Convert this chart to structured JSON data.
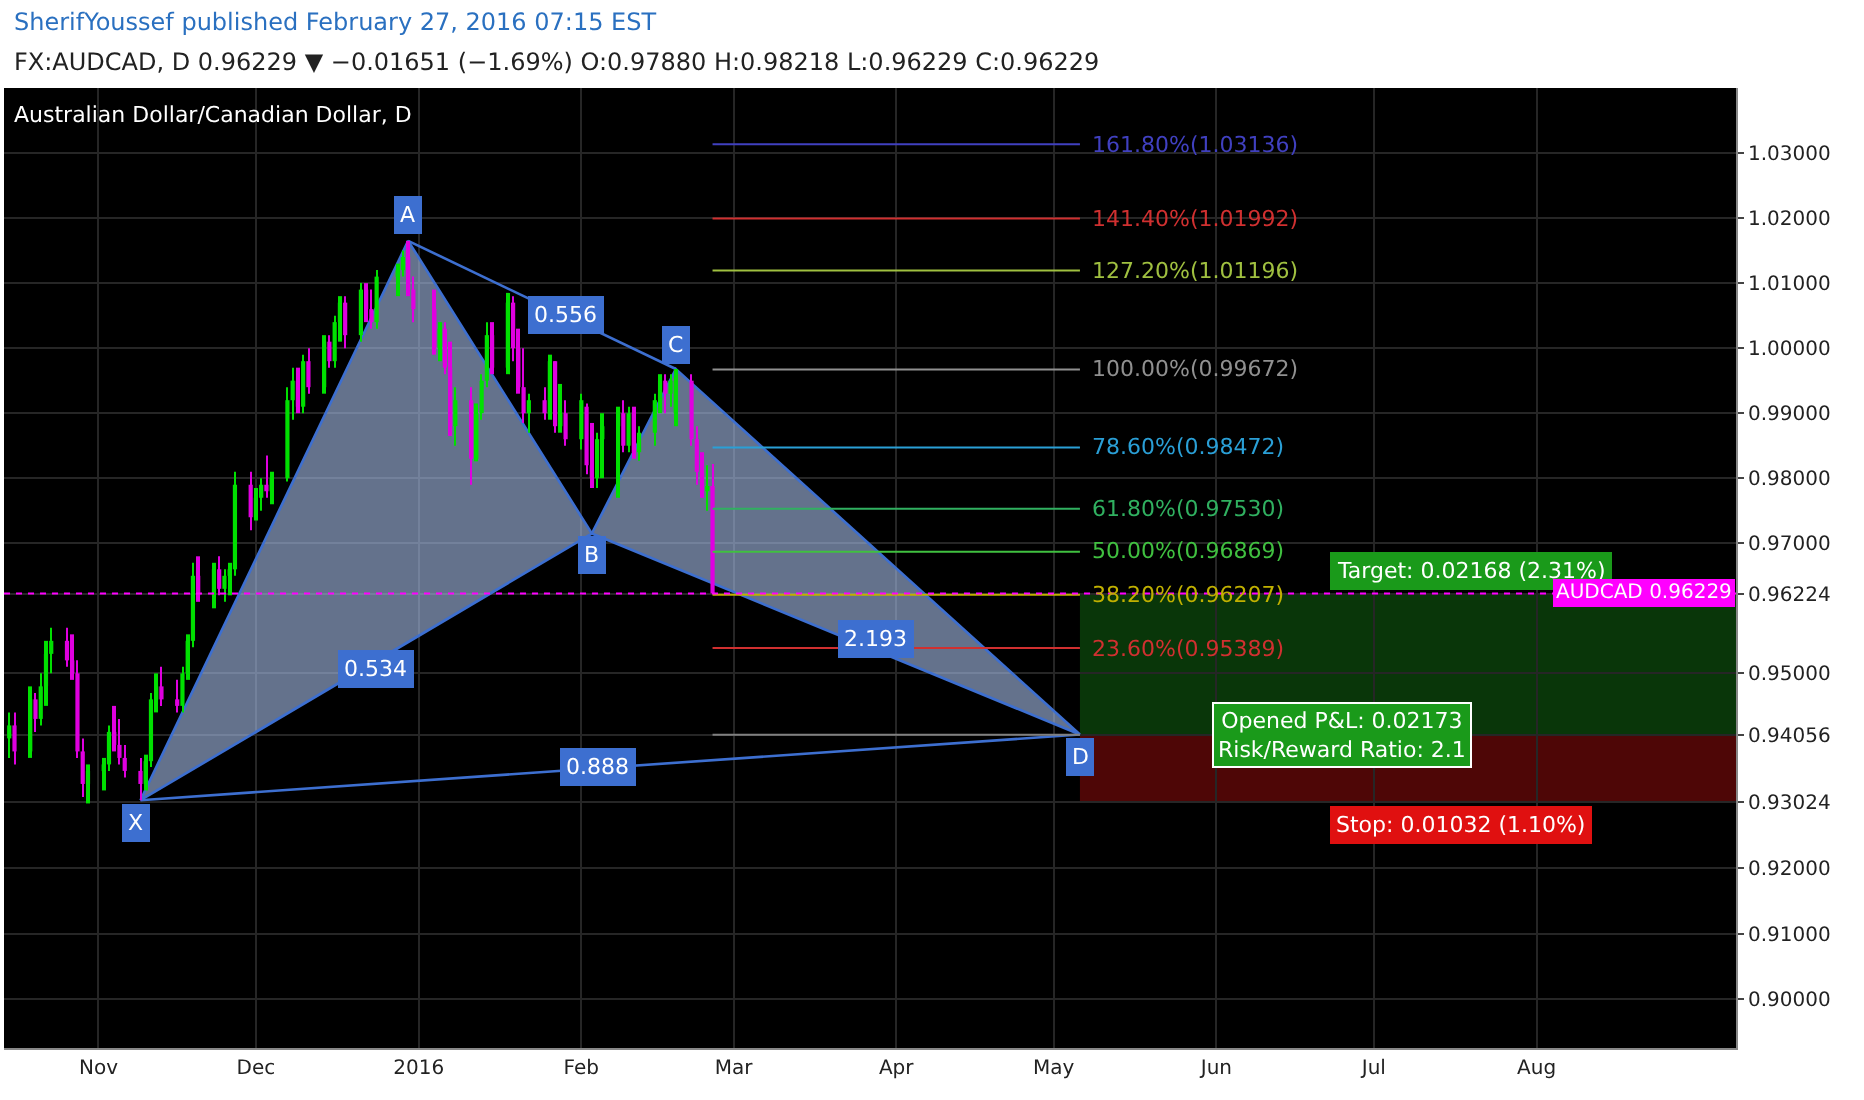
{
  "chart_data": {
    "type": "candlestick",
    "title": "SherifYoussef published February 27, 2016 07:15 EST",
    "subtitle": "FX:AUDCAD, D 0.96229 ▼ −0.01651 (−1.69%) O:0.97880 H:0.98218 L:0.96229 C:0.96229",
    "x": [
      "2015-10-15",
      "2015-10-16",
      "2015-10-19",
      "2015-10-20",
      "2015-10-21",
      "2015-10-22",
      "2015-10-23",
      "2015-10-26",
      "2015-10-27",
      "2015-10-28",
      "2015-10-29",
      "2015-10-30",
      "2015-11-02",
      "2015-11-03",
      "2015-11-04",
      "2015-11-05",
      "2015-11-06",
      "2015-11-09",
      "2015-11-10",
      "2015-11-11",
      "2015-11-12",
      "2015-11-13",
      "2015-11-16",
      "2015-11-17",
      "2015-11-18",
      "2015-11-19",
      "2015-11-20",
      "2015-11-23",
      "2015-11-24",
      "2015-11-25",
      "2015-11-26",
      "2015-11-27",
      "2015-11-30",
      "2015-12-01",
      "2015-12-02",
      "2015-12-03",
      "2015-12-04",
      "2015-12-07",
      "2015-12-08",
      "2015-12-09",
      "2015-12-10",
      "2015-12-11",
      "2015-12-14",
      "2015-12-15",
      "2015-12-16",
      "2015-12-17",
      "2015-12-18",
      "2015-12-21",
      "2015-12-22",
      "2015-12-23",
      "2015-12-24",
      "2015-12-28",
      "2015-12-29",
      "2015-12-30",
      "2015-12-31",
      "2016-01-04",
      "2016-01-05",
      "2016-01-06",
      "2016-01-07",
      "2016-01-08",
      "2016-01-11",
      "2016-01-12",
      "2016-01-13",
      "2016-01-14",
      "2016-01-15",
      "2016-01-18",
      "2016-01-19",
      "2016-01-20",
      "2016-01-21",
      "2016-01-22",
      "2016-01-25",
      "2016-01-26",
      "2016-01-27",
      "2016-01-28",
      "2016-01-29",
      "2016-02-01",
      "2016-02-02",
      "2016-02-03",
      "2016-02-04",
      "2016-02-05",
      "2016-02-08",
      "2016-02-09",
      "2016-02-10",
      "2016-02-11",
      "2016-02-12",
      "2016-02-15",
      "2016-02-16",
      "2016-02-17",
      "2016-02-18",
      "2016-02-19",
      "2016-02-22",
      "2016-02-23",
      "2016-02-24",
      "2016-02-25",
      "2016-02-26"
    ],
    "ohlc": [
      [
        0.94,
        0.944,
        0.937,
        0.942
      ],
      [
        0.942,
        0.944,
        0.936,
        0.938
      ],
      [
        0.938,
        0.948,
        0.937,
        0.946
      ],
      [
        0.946,
        0.947,
        0.941,
        0.943
      ],
      [
        0.943,
        0.95,
        0.942,
        0.948
      ],
      [
        0.948,
        0.955,
        0.945,
        0.953
      ],
      [
        0.953,
        0.957,
        0.95,
        0.955
      ],
      [
        0.955,
        0.957,
        0.951,
        0.952
      ],
      [
        0.952,
        0.956,
        0.949,
        0.95
      ],
      [
        0.95,
        0.952,
        0.937,
        0.938
      ],
      [
        0.938,
        0.94,
        0.931,
        0.933
      ],
      [
        0.933,
        0.936,
        0.93,
        0.935
      ],
      [
        0.935,
        0.937,
        0.932,
        0.936
      ],
      [
        0.936,
        0.942,
        0.935,
        0.941
      ],
      [
        0.941,
        0.945,
        0.938,
        0.939
      ],
      [
        0.939,
        0.943,
        0.936,
        0.937
      ],
      [
        0.937,
        0.939,
        0.934,
        0.935
      ],
      [
        0.935,
        0.937,
        0.9305,
        0.933
      ],
      [
        0.933,
        0.9375,
        0.932,
        0.9365
      ],
      [
        0.9365,
        0.947,
        0.9356,
        0.946
      ],
      [
        0.946,
        0.95,
        0.944,
        0.948
      ],
      [
        0.948,
        0.951,
        0.945,
        0.946
      ],
      [
        0.946,
        0.949,
        0.944,
        0.945
      ],
      [
        0.945,
        0.951,
        0.944,
        0.95
      ],
      [
        0.95,
        0.956,
        0.949,
        0.955
      ],
      [
        0.955,
        0.967,
        0.954,
        0.965
      ],
      [
        0.965,
        0.968,
        0.961,
        0.962
      ],
      [
        0.962,
        0.967,
        0.96,
        0.966
      ],
      [
        0.966,
        0.968,
        0.962,
        0.963
      ],
      [
        0.963,
        0.966,
        0.961,
        0.965
      ],
      [
        0.965,
        0.967,
        0.962,
        0.966
      ],
      [
        0.966,
        0.981,
        0.965,
        0.979
      ],
      [
        0.979,
        0.981,
        0.972,
        0.974
      ],
      [
        0.974,
        0.9785,
        0.9735,
        0.977
      ],
      [
        0.977,
        0.98,
        0.975,
        0.979
      ],
      [
        0.979,
        0.9835,
        0.977,
        0.978
      ],
      [
        0.978,
        0.981,
        0.976,
        0.98
      ],
      [
        0.98,
        0.994,
        0.9795,
        0.992
      ],
      [
        0.992,
        0.997,
        0.989,
        0.995
      ],
      [
        0.995,
        0.997,
        0.99,
        0.991
      ],
      [
        0.991,
        0.999,
        0.99,
        0.998
      ],
      [
        0.998,
        1.0,
        0.993,
        0.994
      ],
      [
        0.994,
        1.002,
        0.993,
        1.001
      ],
      [
        1.001,
        1.002,
        0.997,
        0.998
      ],
      [
        0.998,
        1.005,
        0.997,
        1.004
      ],
      [
        1.004,
        1.008,
        1.001,
        1.007
      ],
      [
        1.007,
        1.008,
        1.0,
        1.002
      ],
      [
        1.002,
        1.01,
        1.001,
        1.009
      ],
      [
        1.009,
        1.01,
        1.004,
        1.006
      ],
      [
        1.006,
        1.009,
        1.003,
        1.004
      ],
      [
        1.004,
        1.012,
        1.003,
        1.011
      ],
      [
        1.011,
        1.013,
        1.008,
        1.012
      ],
      [
        1.012,
        1.015,
        1.011,
        1.014
      ],
      [
        1.014,
        1.0165,
        1.008,
        1.009
      ],
      [
        1.009,
        1.011,
        1.004,
        1.006
      ],
      [
        1.006,
        1.009,
        0.999,
        1.0
      ],
      [
        1.0,
        1.004,
        0.998,
        1.003
      ],
      [
        1.003,
        1.004,
        0.996,
        0.997
      ],
      [
        0.997,
        1.001,
        0.9865,
        0.988
      ],
      [
        0.988,
        0.994,
        0.985,
        0.992
      ],
      [
        0.992,
        0.994,
        0.979,
        0.983
      ],
      [
        0.983,
        0.9915,
        0.9826,
        0.99
      ],
      [
        0.99,
        0.996,
        0.989,
        0.995
      ],
      [
        0.995,
        1.004,
        0.994,
        1.002
      ],
      [
        1.002,
        1.004,
        0.996,
        0.997
      ],
      [
        0.997,
        1.0085,
        0.996,
        1.007
      ],
      [
        1.007,
        1.008,
        0.998,
        1.0
      ],
      [
        1.0,
        1.003,
        0.993,
        0.994
      ],
      [
        0.994,
        1.0,
        0.9885,
        0.99
      ],
      [
        0.99,
        0.993,
        0.987,
        0.992
      ],
      [
        0.992,
        0.994,
        0.989,
        0.99
      ],
      [
        0.99,
        0.999,
        0.989,
        0.998
      ],
      [
        0.998,
        0.998,
        0.987,
        0.988
      ],
      [
        0.988,
        0.9945,
        0.987,
        0.99
      ],
      [
        0.99,
        0.992,
        0.985,
        0.986
      ],
      [
        0.986,
        0.993,
        0.9844,
        0.992
      ],
      [
        0.991,
        0.9915,
        0.9806,
        0.982
      ],
      [
        0.982,
        0.9885,
        0.9785,
        0.98
      ],
      [
        0.98,
        0.987,
        0.9785,
        0.986
      ],
      [
        0.986,
        0.99,
        0.98,
        0.988
      ],
      [
        0.988,
        0.991,
        0.977,
        0.99
      ],
      [
        0.99,
        0.992,
        0.984,
        0.985
      ],
      [
        0.985,
        0.991,
        0.984,
        0.99
      ],
      [
        0.99,
        0.991,
        0.983,
        0.984
      ],
      [
        0.984,
        0.988,
        0.9827,
        0.987
      ],
      [
        0.987,
        0.993,
        0.985,
        0.992
      ],
      [
        0.992,
        0.996,
        0.99,
        0.995
      ],
      [
        0.995,
        0.996,
        0.99,
        0.993
      ],
      [
        0.993,
        0.996,
        0.991,
        0.995
      ],
      [
        0.99,
        0.9968,
        0.988,
        0.995
      ],
      [
        0.995,
        0.996,
        0.985,
        0.986
      ],
      [
        0.986,
        0.988,
        0.979,
        0.981
      ],
      [
        0.981,
        0.984,
        0.977,
        0.978
      ],
      [
        0.978,
        0.982,
        0.975,
        0.9788
      ],
      [
        0.9788,
        0.98218,
        0.96229,
        0.96229
      ]
    ],
    "colors": [
      "#00e000",
      "#e000e0",
      "#00e000",
      "#e000e0",
      "#00e000",
      "#00e000",
      "#00e000",
      "#e000e0",
      "#e000e0",
      "#e000e0",
      "#e000e0",
      "#00e000",
      "#00e000",
      "#00e000",
      "#e000e0",
      "#e000e0",
      "#e000e0",
      "#e000e0",
      "#00e000",
      "#00e000",
      "#00e000",
      "#e000e0",
      "#e000e0",
      "#00e000",
      "#00e000",
      "#00e000",
      "#e000e0",
      "#00e000",
      "#e000e0",
      "#00e000",
      "#00e000",
      "#00e000",
      "#e000e0",
      "#00e000",
      "#00e000",
      "#e000e0",
      "#00e000",
      "#00e000",
      "#00e000",
      "#e000e0",
      "#00e000",
      "#e000e0",
      "#00e000",
      "#e000e0",
      "#00e000",
      "#00e000",
      "#e000e0",
      "#00e000",
      "#e000e0",
      "#e000e0",
      "#00e000",
      "#00e000",
      "#00e000",
      "#e000e0",
      "#e000e0",
      "#e000e0",
      "#00e000",
      "#e000e0",
      "#e000e0",
      "#00e000",
      "#e000e0",
      "#00e000",
      "#00e000",
      "#00e000",
      "#e000e0",
      "#00e000",
      "#e000e0",
      "#e000e0",
      "#e000e0",
      "#00e000",
      "#e000e0",
      "#00e000",
      "#e000e0",
      "#00e000",
      "#e000e0",
      "#00e000",
      "#e000e0",
      "#e000e0",
      "#00e000",
      "#00e000",
      "#00e000",
      "#e000e0",
      "#00e000",
      "#e000e0",
      "#00e000",
      "#00e000",
      "#00e000",
      "#e000e0",
      "#00e000",
      "#00e000",
      "#e000e0",
      "#e000e0",
      "#e000e0",
      "#00e000",
      "#e000e0"
    ],
    "series": [
      {
        "type": "area",
        "color": "#3d6fd0",
        "x": [
          "2015-11-09",
          "2015-12-30",
          "2016-02-03",
          "2015-11-09"
        ],
        "values": [
          0.9305,
          1.0165,
          0.9715,
          0.9305
        ]
      },
      {
        "type": "area",
        "color": "#3d6fd0",
        "x": [
          "2016-02-03",
          "2016-02-19",
          "2016-05-06",
          "2016-02-03"
        ],
        "values": [
          0.9715,
          0.9968,
          0.9406,
          0.9715
        ]
      },
      {
        "type": "line",
        "color": "#3d6fd0",
        "x": [
          "2015-11-09",
          "2016-05-06"
        ],
        "values": [
          0.9305,
          0.9406
        ]
      },
      {
        "type": "line",
        "color": "#3d6fd0",
        "x": [
          "2015-12-30",
          "2016-02-19"
        ],
        "values": [
          1.0165,
          0.9968
        ]
      }
    ],
    "xlim": [
      "2015-10-14",
      "2016-09-08"
    ],
    "xticks": [
      {
        "value": "2015-11-01",
        "label": "Nov"
      },
      {
        "value": "2015-12-01",
        "label": "Dec"
      },
      {
        "value": "2016-01-01",
        "label": "2016"
      },
      {
        "value": "2016-02-01",
        "label": "Feb"
      },
      {
        "value": "2016-03-01",
        "label": "Mar"
      },
      {
        "value": "2016-04-01",
        "label": "Apr"
      },
      {
        "value": "2016-05-01",
        "label": "May"
      },
      {
        "value": "2016-06-01",
        "label": "Jun"
      },
      {
        "value": "2016-07-01",
        "label": "Jul"
      },
      {
        "value": "2016-08-01",
        "label": "Aug"
      }
    ],
    "ylim": [
      0.8924,
      1.04
    ],
    "yticks": [
      {
        "value": 0.9,
        "label": "0.90000"
      },
      {
        "value": 0.91,
        "label": "0.91000"
      },
      {
        "value": 0.92,
        "label": "0.92000"
      },
      {
        "value": 0.93024,
        "label": "0.93024"
      },
      {
        "value": 0.94056,
        "label": "0.94056"
      },
      {
        "value": 0.95,
        "label": "0.95000"
      },
      {
        "value": 0.96224,
        "label": "0.96224"
      },
      {
        "value": 0.97,
        "label": "0.97000"
      },
      {
        "value": 0.98,
        "label": "0.98000"
      },
      {
        "value": 0.99,
        "label": "0.99000"
      },
      {
        "value": 1.0,
        "label": "1.00000"
      },
      {
        "value": 1.01,
        "label": "1.01000"
      },
      {
        "value": 1.02,
        "label": "1.02000"
      },
      {
        "value": 1.03,
        "label": "1.03000"
      }
    ],
    "grid": true,
    "ref_lines": [
      {
        "axis": "y",
        "value": 1.03136,
        "label": "161.80%(1.03136)",
        "color": "#4040c0"
      },
      {
        "axis": "y",
        "value": 1.01992,
        "label": "141.40%(1.01992)",
        "color": "#d03030"
      },
      {
        "axis": "y",
        "value": 1.01196,
        "label": "127.20%(1.01196)",
        "color": "#a0c040"
      },
      {
        "axis": "y",
        "value": 0.99672,
        "label": "100.00%(0.99672)",
        "color": "#909090"
      },
      {
        "axis": "y",
        "value": 0.98472,
        "label": "78.60%(0.98472)",
        "color": "#2a9fd6"
      },
      {
        "axis": "y",
        "value": 0.9753,
        "label": "61.80%(0.97530)",
        "color": "#30b060"
      },
      {
        "axis": "y",
        "value": 0.96869,
        "label": "50.00%(0.96869)",
        "color": "#40c040"
      },
      {
        "axis": "y",
        "value": 0.96207,
        "label": "38.20%(0.96207)",
        "color": "#c0b000"
      },
      {
        "axis": "y",
        "value": 0.95389,
        "label": "23.60%(0.95389)",
        "color": "#d03030"
      },
      {
        "axis": "y",
        "value": 0.94056,
        "label": null,
        "color": "#808080"
      },
      {
        "axis": "y",
        "value": 0.96229,
        "label": "AUDCAD 0.96229",
        "color": "#ff00ff",
        "line_style": "dotted"
      }
    ],
    "bands": [
      {
        "axis": "y",
        "from": 0.94056,
        "to": 0.96224,
        "label": "Target: 0.02168 (2.31%)",
        "color": "#1a9a1a"
      },
      {
        "axis": "y",
        "from": 0.93024,
        "to": 0.94056,
        "label": "Stop: 0.01032 (1.10%)",
        "color": "#e01010"
      }
    ],
    "annotations": [
      "Australian Dollar/Canadian Dollar, D",
      {
        "text": "X",
        "x": "2015-11-08",
        "y": 0.927
      },
      {
        "text": "A",
        "x": "2015-12-30",
        "y": 1.0206
      },
      {
        "text": "B",
        "x": "2016-02-03",
        "y": 0.9682
      },
      {
        "text": "C",
        "x": "2016-02-19",
        "y": 1.0006
      },
      {
        "text": "D",
        "x": "2016-05-06",
        "y": 0.937
      },
      {
        "text": "0.556",
        "x": "2016-01-29",
        "y": 1.0052
      },
      {
        "text": "0.534",
        "x": "2015-12-24",
        "y": 0.9506
      },
      {
        "text": "2.193",
        "x": "2016-03-28",
        "y": 0.9553
      },
      {
        "text": "0.888",
        "x": "2016-02-04",
        "y": 0.9356
      },
      {
        "text": "Opened P&L: 0.02173\nRisk/Reward Ratio: 2.1",
        "x": "2016-06-25",
        "y": 0.9406
      }
    ]
  }
}
